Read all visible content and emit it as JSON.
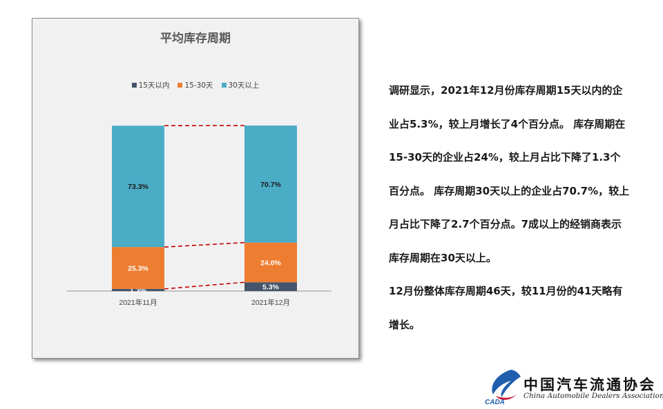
{
  "chart_data": {
    "type": "bar",
    "stacked": true,
    "title": "平均库存周期",
    "categories": [
      "2021年11月",
      "2021年12月"
    ],
    "series": [
      {
        "name": "15天以内",
        "values": [
          1.3,
          5.3
        ],
        "labels": [
          "1.3%",
          "5.3%"
        ],
        "color": "#44546a",
        "label_color": "#ffffff"
      },
      {
        "name": "15-30天",
        "values": [
          25.3,
          24.0
        ],
        "labels": [
          "25.3%",
          "24.0%"
        ],
        "color": "#ed7d31",
        "label_color": "#ffffff"
      },
      {
        "name": "30天以上",
        "values": [
          73.3,
          70.7
        ],
        "labels": [
          "73.3%",
          "70.7%"
        ],
        "color": "#4bacc6",
        "label_color": "#1a1a1a"
      }
    ],
    "ylim": [
      0,
      100
    ],
    "legend_position": "top",
    "connector_lines": true,
    "connector_color": "#c00000"
  },
  "text": {
    "paragraphs": [
      "调研显示，2021年12月份库存周期15天以内的企业占5.3%，较上月增长了4个百分点。 库存周期在15-30天的企业占24%，较上月占比下降了1.3个百分点。 库存周期30天以上的企业占70.7%，较上月占比下降了2.7个百分点。7成以上的经销商表示库存周期在30天以上。",
      "12月份整体库存周期46天，较11月份的41天略有增长。"
    ]
  },
  "logo": {
    "cn": "中国汽车流通协会",
    "en": "China Automobile Dealers Association",
    "mark": "CADA"
  }
}
